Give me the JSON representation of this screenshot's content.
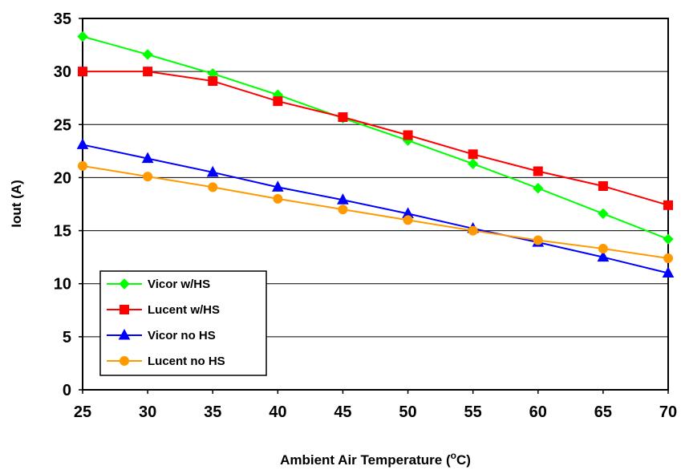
{
  "chart_data": {
    "type": "line",
    "title": "",
    "xlabel": "Ambient Air Temperature (",
    "xlabel_unit_sup": "o",
    "xlabel_suffix": "C)",
    "ylabel": "Iout (A)",
    "x": [
      25,
      30,
      35,
      40,
      45,
      50,
      55,
      60,
      65,
      70
    ],
    "xlim": [
      25,
      70
    ],
    "ylim": [
      0,
      35
    ],
    "yticks": [
      0,
      5,
      10,
      15,
      20,
      25,
      30,
      35
    ],
    "xticks": [
      25,
      30,
      35,
      40,
      45,
      50,
      55,
      60,
      65,
      70
    ],
    "grid": "horizontal",
    "legend_position": "bottom-left",
    "series": [
      {
        "name": "Vicor w/HS",
        "color": "#00ff00",
        "marker": "diamond",
        "values": [
          33.3,
          31.6,
          29.8,
          27.8,
          25.6,
          23.5,
          21.3,
          19.0,
          16.6,
          14.2
        ]
      },
      {
        "name": "Lucent w/HS",
        "color": "#ff0000",
        "marker": "square",
        "values": [
          30.0,
          30.0,
          29.1,
          27.2,
          25.7,
          24.0,
          22.2,
          20.6,
          19.2,
          17.4
        ]
      },
      {
        "name": "Vicor no HS",
        "color": "#0000ff",
        "marker": "triangle",
        "values": [
          23.1,
          21.8,
          20.5,
          19.1,
          17.9,
          16.6,
          15.2,
          13.9,
          12.5,
          11.0
        ]
      },
      {
        "name": "Lucent no HS",
        "color": "#ff9900",
        "marker": "circle",
        "values": [
          21.1,
          20.1,
          19.1,
          18.0,
          17.0,
          16.0,
          15.0,
          14.1,
          13.3,
          12.4
        ]
      }
    ]
  }
}
